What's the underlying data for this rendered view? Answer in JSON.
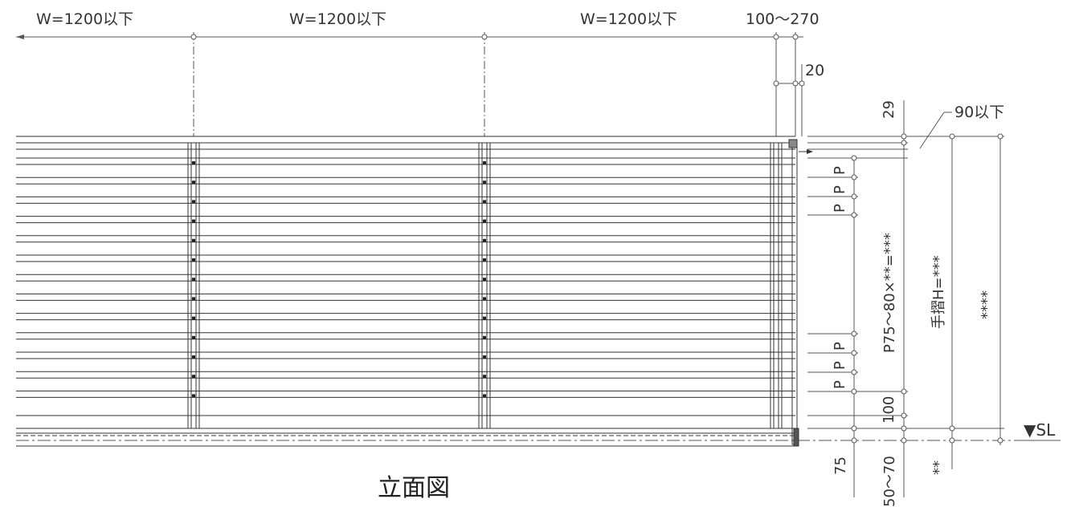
{
  "title": "立面図",
  "top_dims": {
    "bay1": "W=1200以下",
    "bay2": "W=1200以下",
    "bay3": "W=1200以下",
    "end_offset": "100〜270",
    "post_width": "20"
  },
  "right_dims": {
    "top_gap": "29",
    "handrail_offset": "90以下",
    "pitch": "P75〜80×**=***",
    "handrail_height": "手摺H=***",
    "total_height": "****",
    "bottom_gap": "100",
    "base_depth_a": "75",
    "base_depth_b": "50〜70",
    "base_depth_c": "**",
    "sl_label": "▼SL",
    "pitch_marks_upper": [
      "P",
      "P",
      "P"
    ],
    "pitch_marks_lower": [
      "P",
      "P",
      "P"
    ]
  }
}
